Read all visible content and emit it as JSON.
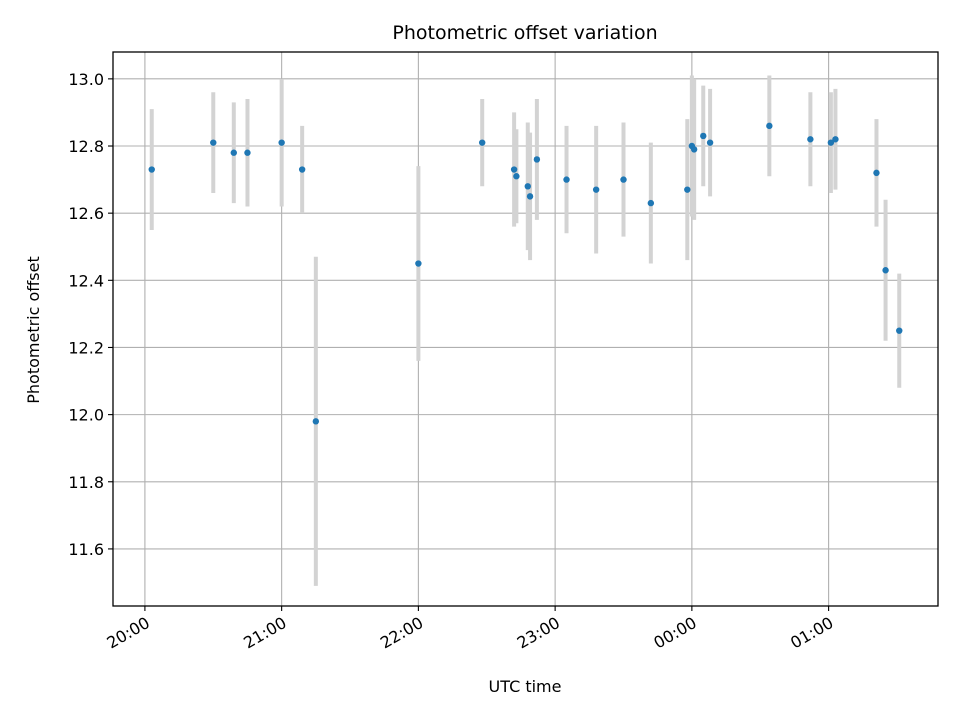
{
  "chart_data": {
    "type": "scatter",
    "title": "Photometric offset variation",
    "xlabel": "UTC time",
    "ylabel": "Photometric offset",
    "x_ticks": [
      "20:00",
      "21:00",
      "22:00",
      "23:00",
      "00:00",
      "01:00"
    ],
    "y_ticks": [
      "11.6",
      "11.8",
      "12.0",
      "12.2",
      "12.4",
      "12.6",
      "12.8",
      "13.0"
    ],
    "xlim": [
      "19:46",
      "01:48"
    ],
    "ylim": [
      11.43,
      13.08
    ],
    "grid": true,
    "colors": {
      "points": "#1f77b4",
      "errorbars": "#d3d3d3",
      "grid": "#b0b0b0"
    },
    "points": [
      {
        "x": "20:03",
        "y": 12.73,
        "err": 0.18
      },
      {
        "x": "20:30",
        "y": 12.81,
        "err": 0.15
      },
      {
        "x": "20:39",
        "y": 12.78,
        "err": 0.15
      },
      {
        "x": "20:45",
        "y": 12.78,
        "err": 0.16
      },
      {
        "x": "21:00",
        "y": 12.81,
        "err": 0.19
      },
      {
        "x": "21:09",
        "y": 12.73,
        "err": 0.13
      },
      {
        "x": "21:15",
        "y": 11.98,
        "err": 0.49
      },
      {
        "x": "22:00",
        "y": 12.45,
        "err": 0.29
      },
      {
        "x": "22:28",
        "y": 12.81,
        "err": 0.13
      },
      {
        "x": "22:42",
        "y": 12.73,
        "err": 0.17
      },
      {
        "x": "22:43",
        "y": 12.71,
        "err": 0.14
      },
      {
        "x": "22:48",
        "y": 12.68,
        "err": 0.19
      },
      {
        "x": "22:49",
        "y": 12.65,
        "err": 0.19
      },
      {
        "x": "22:52",
        "y": 12.76,
        "err": 0.18
      },
      {
        "x": "23:05",
        "y": 12.7,
        "err": 0.16
      },
      {
        "x": "23:18",
        "y": 12.67,
        "err": 0.19
      },
      {
        "x": "23:30",
        "y": 12.7,
        "err": 0.17
      },
      {
        "x": "23:42",
        "y": 12.63,
        "err": 0.18
      },
      {
        "x": "23:58",
        "y": 12.67,
        "err": 0.21
      },
      {
        "x": "00:00",
        "y": 12.8,
        "err": 0.21
      },
      {
        "x": "00:01",
        "y": 12.79,
        "err": 0.21
      },
      {
        "x": "00:05",
        "y": 12.83,
        "err": 0.15
      },
      {
        "x": "00:08",
        "y": 12.81,
        "err": 0.16
      },
      {
        "x": "00:34",
        "y": 12.86,
        "err": 0.15
      },
      {
        "x": "00:52",
        "y": 12.82,
        "err": 0.14
      },
      {
        "x": "01:01",
        "y": 12.81,
        "err": 0.15
      },
      {
        "x": "01:03",
        "y": 12.82,
        "err": 0.15
      },
      {
        "x": "01:21",
        "y": 12.72,
        "err": 0.16
      },
      {
        "x": "01:25",
        "y": 12.43,
        "err": 0.21
      },
      {
        "x": "01:31",
        "y": 12.25,
        "err": 0.17
      }
    ]
  }
}
